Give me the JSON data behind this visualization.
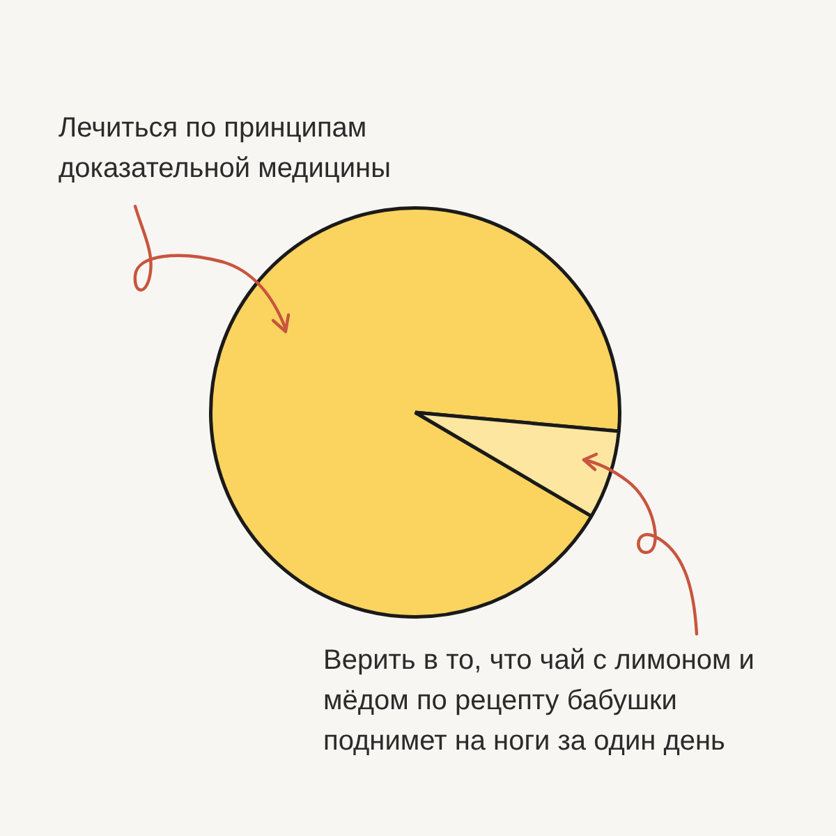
{
  "chart_data": {
    "type": "pie",
    "categories": [
      "Лечиться по принципам доказательной медицины",
      "Верить в то, что чай с лимоном и мёдом по рецепту бабушки поднимет на ноги за один день"
    ],
    "values": [
      93,
      7
    ],
    "colors": [
      "#fbd35f",
      "#fde6a0"
    ],
    "legend": false
  }
}
